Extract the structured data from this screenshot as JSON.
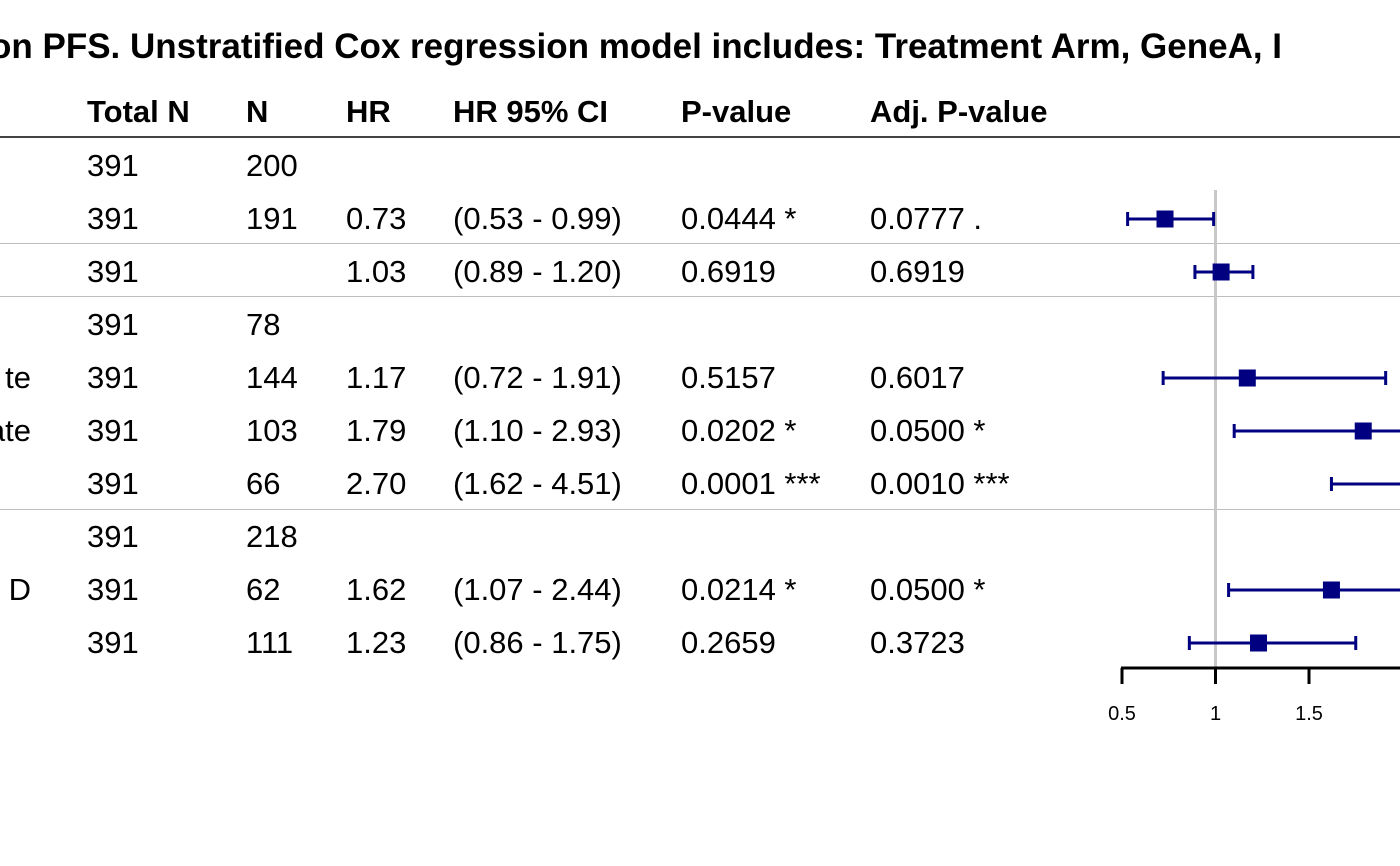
{
  "title": "on PFS. Unstratified Cox regression model includes: Treatment Arm, GeneA, I",
  "columns": {
    "total_n": "Total N",
    "n": "N",
    "hr": "HR",
    "ci": "HR 95% CI",
    "pvalue": "P-value",
    "adj_pvalue": "Adj. P-value"
  },
  "rows": [
    {
      "label": "",
      "total_n": "391",
      "n": "200",
      "hr": "",
      "ci": "",
      "pvalue": "",
      "adj_pvalue": ""
    },
    {
      "label": "",
      "total_n": "391",
      "n": "191",
      "hr": "0.73",
      "ci": "(0.53 - 0.99)",
      "pvalue": "0.0444 *",
      "adj_pvalue": "0.0777 ."
    },
    {
      "label": "",
      "total_n": "391",
      "n": "",
      "hr": "1.03",
      "ci": "(0.89 - 1.20)",
      "pvalue": "0.6919",
      "adj_pvalue": "0.6919"
    },
    {
      "label": "",
      "total_n": "391",
      "n": "78",
      "hr": "",
      "ci": "",
      "pvalue": "",
      "adj_pvalue": ""
    },
    {
      "label": "te",
      "total_n": "391",
      "n": "144",
      "hr": "1.17",
      "ci": "(0.72 - 1.91)",
      "pvalue": "0.5157",
      "adj_pvalue": "0.6017"
    },
    {
      "label": "ate",
      "total_n": "391",
      "n": "103",
      "hr": "1.79",
      "ci": "(1.10 - 2.93)",
      "pvalue": "0.0202 *",
      "adj_pvalue": "0.0500 *"
    },
    {
      "label": "",
      "total_n": "391",
      "n": "66",
      "hr": "2.70",
      "ci": "(1.62 - 4.51)",
      "pvalue": "0.0001 ***",
      "adj_pvalue": "0.0010 ***"
    },
    {
      "label": "",
      "total_n": "391",
      "n": "218",
      "hr": "",
      "ci": "",
      "pvalue": "",
      "adj_pvalue": ""
    },
    {
      "label": "D",
      "total_n": "391",
      "n": "62",
      "hr": "1.62",
      "ci": "(1.07 - 2.44)",
      "pvalue": "0.0214 *",
      "adj_pvalue": "0.0500 *"
    },
    {
      "label": "",
      "total_n": "391",
      "n": "111",
      "hr": "1.23",
      "ci": "(0.86 - 1.75)",
      "pvalue": "0.2659",
      "adj_pvalue": "0.3723"
    }
  ],
  "chart_data": {
    "type": "forest",
    "title": "on PFS. Unstratified Cox regression model includes: Treatment Arm, GeneA, I",
    "xlabel": "",
    "ylabel": "",
    "reference_line": 1,
    "xlim": [
      0.5,
      2.0
    ],
    "xticks": [
      0.5,
      1,
      1.5
    ],
    "xtick_labels": [
      "0.5",
      "1",
      "1.5"
    ],
    "points": [
      {
        "row": 1,
        "hr": 0.73,
        "lower": 0.53,
        "upper": 0.99
      },
      {
        "row": 2,
        "hr": 1.03,
        "lower": 0.89,
        "upper": 1.2
      },
      {
        "row": 4,
        "hr": 1.17,
        "lower": 0.72,
        "upper": 1.91
      },
      {
        "row": 5,
        "hr": 1.79,
        "lower": 1.1,
        "upper": 2.93
      },
      {
        "row": 6,
        "hr": 2.7,
        "lower": 1.62,
        "upper": 4.51
      },
      {
        "row": 8,
        "hr": 1.62,
        "lower": 1.07,
        "upper": 2.44
      },
      {
        "row": 9,
        "hr": 1.23,
        "lower": 0.86,
        "upper": 1.75
      }
    ],
    "colors": {
      "marker": "#000080",
      "reference_line": "#c8c8c8",
      "axis": "#000000"
    },
    "grid": false,
    "legend": "none"
  }
}
